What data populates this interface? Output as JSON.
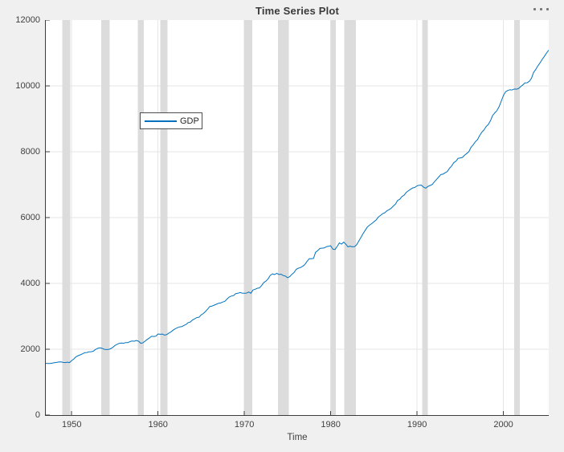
{
  "window": {
    "toolbar": {
      "more_options_icon": "ellipsis-icon"
    }
  },
  "chart_data": {
    "type": "line",
    "title": "Time Series Plot",
    "xlabel": "Time",
    "ylabel": "",
    "xlim": [
      1947,
      2005.25
    ],
    "ylim": [
      0,
      12000
    ],
    "xticks": [
      1950,
      1960,
      1970,
      1980,
      1990,
      2000
    ],
    "yticks": [
      0,
      2000,
      4000,
      6000,
      8000,
      10000,
      12000
    ],
    "grid": true,
    "legend": {
      "position": "upper-left-inside",
      "entries": [
        "GDP"
      ]
    },
    "colors": {
      "line": "#0072bd",
      "recession_band": "#dcdcdc",
      "grid": "#e6e6e6",
      "figure_background": "#f0f0f0",
      "plot_background": "#ffffff",
      "axis": "#3c3c3c",
      "text": "#3f3f3f"
    },
    "recession_bands": [
      [
        1948.92,
        1949.83
      ],
      [
        1953.42,
        1954.42
      ],
      [
        1957.67,
        1958.33
      ],
      [
        1960.25,
        1961.08
      ],
      [
        1969.92,
        1970.92
      ],
      [
        1973.87,
        1975.17
      ],
      [
        1980.0,
        1980.58
      ],
      [
        1981.58,
        1982.92
      ],
      [
        1990.58,
        1991.25
      ],
      [
        2001.25,
        2001.92
      ]
    ],
    "series": [
      {
        "name": "GDP",
        "x_start": 1947.0,
        "x_step": 0.25,
        "x_end": 2005.25,
        "y": [
          1570,
          1568,
          1568,
          1577,
          1590,
          1601,
          1612,
          1615,
          1601,
          1595,
          1607,
          1595,
          1657,
          1706,
          1770,
          1805,
          1829,
          1860,
          1896,
          1901,
          1921,
          1924,
          1938,
          1992,
          2028,
          2042,
          2030,
          1999,
          1990,
          1993,
          2015,
          2056,
          2113,
          2148,
          2177,
          2190,
          2182,
          2199,
          2200,
          2234,
          2249,
          2243,
          2266,
          2243,
          2181,
          2195,
          2246,
          2300,
          2344,
          2392,
          2387,
          2398,
          2464,
          2453,
          2462,
          2430,
          2445,
          2490,
          2528,
          2580,
          2625,
          2653,
          2679,
          2687,
          2721,
          2754,
          2809,
          2830,
          2891,
          2924,
          2964,
          2972,
          3044,
          3085,
          3149,
          3222,
          3301,
          3313,
          3340,
          3366,
          3396,
          3404,
          3433,
          3459,
          3528,
          3589,
          3616,
          3632,
          3690,
          3700,
          3722,
          3705,
          3700,
          3705,
          3738,
          3699,
          3800,
          3821,
          3853,
          3863,
          3936,
          4029,
          4068,
          4138,
          4243,
          4291,
          4268,
          4308,
          4271,
          4281,
          4239,
          4222,
          4173,
          4204,
          4275,
          4332,
          4428,
          4461,
          4484,
          4519,
          4572,
          4665,
          4749,
          4748,
          4758,
          4947,
          4998,
          5063,
          5071,
          5077,
          5115,
          5128,
          5144,
          5040,
          5029,
          5124,
          5231,
          5193,
          5257,
          5190,
          5109,
          5132,
          5113,
          5114,
          5172,
          5289,
          5400,
          5511,
          5615,
          5714,
          5770,
          5816,
          5872,
          5924,
          6014,
          6060,
          6118,
          6144,
          6205,
          6239,
          6284,
          6352,
          6409,
          6520,
          6556,
          6640,
          6680,
          6767,
          6818,
          6862,
          6900,
          6918,
          6964,
          6984,
          6985,
          6925,
          6892,
          6944,
          6975,
          7003,
          7083,
          7157,
          7232,
          7308,
          7319,
          7361,
          7397,
          7497,
          7567,
          7668,
          7712,
          7799,
          7812,
          7828,
          7893,
          7947,
          8002,
          8137,
          8211,
          8305,
          8367,
          8490,
          8596,
          8662,
          8766,
          8830,
          8943,
          9098,
          9181,
          9250,
          9369,
          9537,
          9709,
          9821,
          9862,
          9883,
          9875,
          9906,
          9899,
          9920,
          9977,
          10032,
          10091,
          10096,
          10139,
          10230,
          10411,
          10503,
          10613,
          10704,
          10808,
          10898,
          10999,
          11089
        ]
      }
    ]
  }
}
